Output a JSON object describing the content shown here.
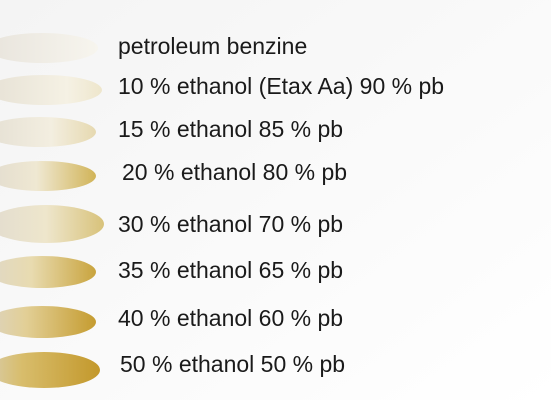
{
  "labels": [
    "petroleum benzine",
    "10 % ethanol (Etax Aa) 90 % pb",
    "15 % ethanol 85 % pb",
    "20 % ethanol 80 % pb",
    "30 % ethanol 70 % pb",
    "35 % ethanol 65 % pb",
    "40 % ethanol 60 % pb",
    "50 % ethanol 50 % pb"
  ]
}
